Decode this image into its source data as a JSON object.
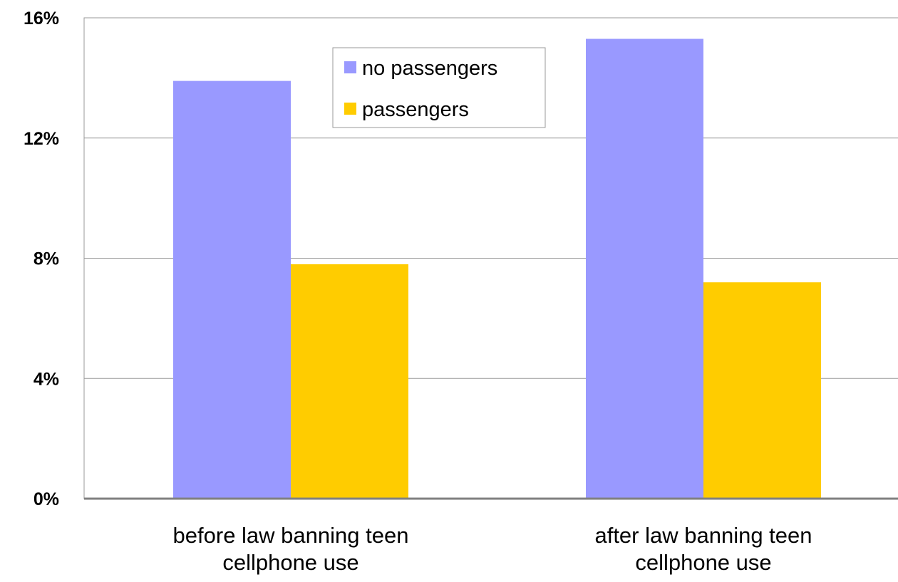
{
  "chart_data": {
    "type": "bar",
    "title": "",
    "xlabel": "",
    "ylabel": "",
    "categories": [
      [
        "before law banning teen",
        "cellphone use"
      ],
      [
        "after law banning teen",
        "cellphone use"
      ]
    ],
    "series": [
      {
        "name": "no passengers",
        "color": "#9999ff",
        "values": [
          13.9,
          15.3
        ]
      },
      {
        "name": "passengers",
        "color": "#ffcc00",
        "values": [
          7.8,
          7.2
        ]
      }
    ],
    "ylim": [
      0,
      16
    ],
    "yticks": [
      0,
      4,
      8,
      12,
      16
    ],
    "ytick_labels": [
      "0%",
      "4%",
      "8%",
      "12%",
      "16%"
    ],
    "grid": true,
    "legend_position": "top-center"
  }
}
